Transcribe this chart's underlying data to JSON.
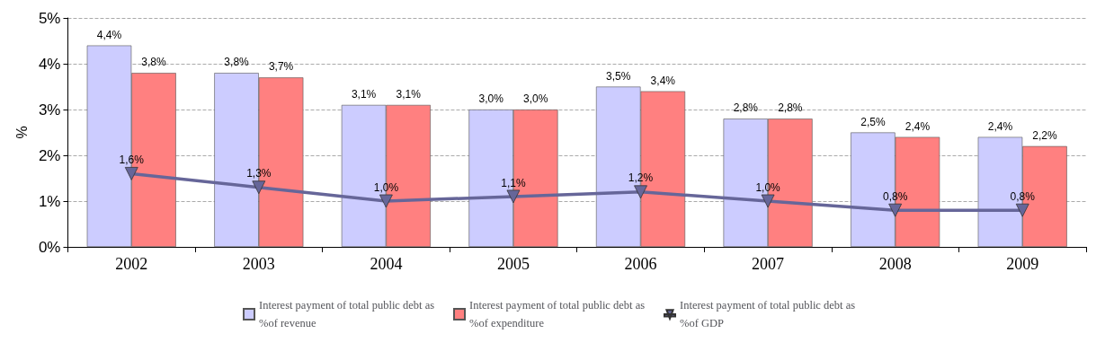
{
  "chart_data": {
    "type": "bar",
    "ylabel": "%",
    "categories": [
      "2002",
      "2003",
      "2004",
      "2005",
      "2006",
      "2007",
      "2008",
      "2009"
    ],
    "ylim": [
      0,
      5
    ],
    "yticks": [
      {
        "value": 0,
        "label": "0%"
      },
      {
        "value": 1,
        "label": "1%"
      },
      {
        "value": 2,
        "label": "2%"
      },
      {
        "value": 3,
        "label": "3%"
      },
      {
        "value": 4,
        "label": "4%"
      },
      {
        "value": 5,
        "label": "5%"
      }
    ],
    "grid": "y",
    "legend": "bottom",
    "marker": "triangle",
    "series": [
      {
        "name": "Interest payment of total public debt as %of revenue",
        "color": "#ccccff",
        "values": [
          4.4,
          3.8,
          3.1,
          3.0,
          3.5,
          2.8,
          2.5,
          2.4
        ],
        "value_labels": [
          "4,4%",
          "3,8%",
          "3,1%",
          "3,0%",
          "3,5%",
          "2,8%",
          "2,5%",
          "2,4%"
        ]
      },
      {
        "name": "Interest payment of total public debt as %of expenditure",
        "color": "#ff8080",
        "values": [
          3.8,
          3.7,
          3.1,
          3.0,
          3.4,
          2.8,
          2.4,
          2.2
        ],
        "value_labels": [
          "3,8%",
          "3,7%",
          "3,1%",
          "3,0%",
          "3,4%",
          "2,8%",
          "2,4%",
          "2,2%"
        ]
      },
      {
        "name": "Interest payment of total public debt as %of GDP",
        "type": "line",
        "color": "#666699",
        "values": [
          1.6,
          1.3,
          1.0,
          1.1,
          1.2,
          1.0,
          0.8,
          0.8
        ],
        "value_labels": [
          "1,6%",
          "1,3%",
          "1,0%",
          "1,1%",
          "1,2%",
          "1,0%",
          "0,8%",
          "0,8%"
        ]
      }
    ]
  }
}
